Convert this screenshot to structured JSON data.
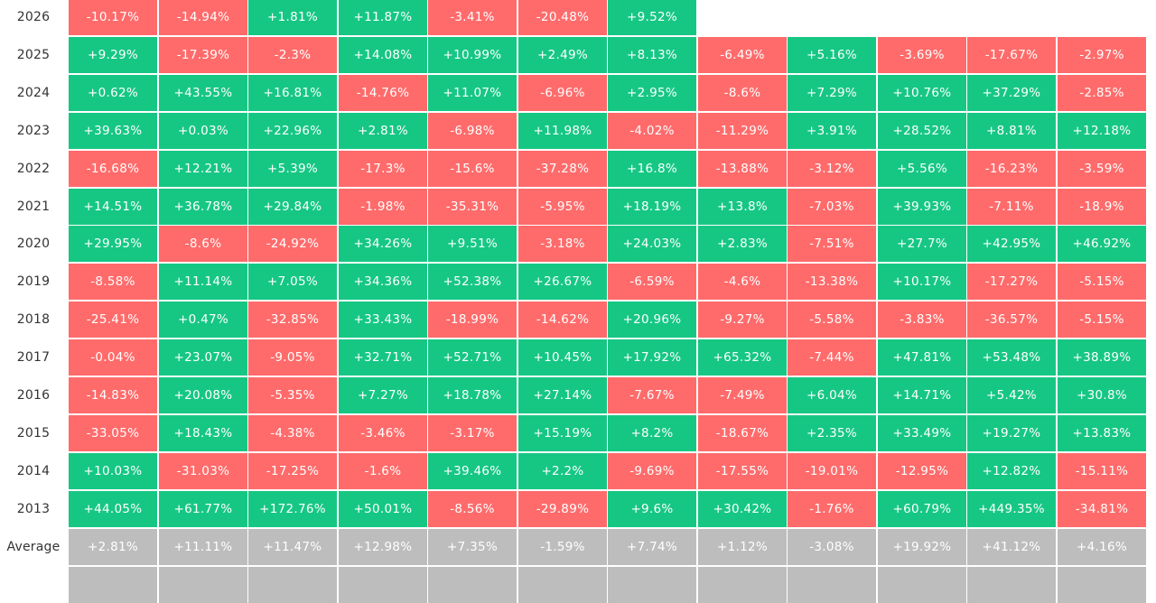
{
  "colors": {
    "positive": "#16c784",
    "negative": "#ff6b6b",
    "average": "#bdbdbd",
    "label_text": "#333333"
  },
  "chart_data": {
    "type": "table",
    "rows": [
      {
        "label": "2026",
        "values": [
          "-10.17%",
          "-14.94%",
          "+1.81%",
          "+11.87%",
          "-3.41%",
          "-20.48%",
          "+9.52%"
        ]
      },
      {
        "label": "2025",
        "values": [
          "+9.29%",
          "-17.39%",
          "-2.3%",
          "+14.08%",
          "+10.99%",
          "+2.49%",
          "+8.13%",
          "-6.49%",
          "+5.16%",
          "-3.69%",
          "-17.67%",
          "-2.97%"
        ]
      },
      {
        "label": "2024",
        "values": [
          "+0.62%",
          "+43.55%",
          "+16.81%",
          "-14.76%",
          "+11.07%",
          "-6.96%",
          "+2.95%",
          "-8.6%",
          "+7.29%",
          "+10.76%",
          "+37.29%",
          "-2.85%"
        ]
      },
      {
        "label": "2023",
        "values": [
          "+39.63%",
          "+0.03%",
          "+22.96%",
          "+2.81%",
          "-6.98%",
          "+11.98%",
          "-4.02%",
          "-11.29%",
          "+3.91%",
          "+28.52%",
          "+8.81%",
          "+12.18%"
        ]
      },
      {
        "label": "2022",
        "values": [
          "-16.68%",
          "+12.21%",
          "+5.39%",
          "-17.3%",
          "-15.6%",
          "-37.28%",
          "+16.8%",
          "-13.88%",
          "-3.12%",
          "+5.56%",
          "-16.23%",
          "-3.59%"
        ]
      },
      {
        "label": "2021",
        "values": [
          "+14.51%",
          "+36.78%",
          "+29.84%",
          "-1.98%",
          "-35.31%",
          "-5.95%",
          "+18.19%",
          "+13.8%",
          "-7.03%",
          "+39.93%",
          "-7.11%",
          "-18.9%"
        ]
      },
      {
        "label": "2020",
        "values": [
          "+29.95%",
          "-8.6%",
          "-24.92%",
          "+34.26%",
          "+9.51%",
          "-3.18%",
          "+24.03%",
          "+2.83%",
          "-7.51%",
          "+27.7%",
          "+42.95%",
          "+46.92%"
        ]
      },
      {
        "label": "2019",
        "values": [
          "-8.58%",
          "+11.14%",
          "+7.05%",
          "+34.36%",
          "+52.38%",
          "+26.67%",
          "-6.59%",
          "-4.6%",
          "-13.38%",
          "+10.17%",
          "-17.27%",
          "-5.15%"
        ]
      },
      {
        "label": "2018",
        "values": [
          "-25.41%",
          "+0.47%",
          "-32.85%",
          "+33.43%",
          "-18.99%",
          "-14.62%",
          "+20.96%",
          "-9.27%",
          "-5.58%",
          "-3.83%",
          "-36.57%",
          "-5.15%"
        ]
      },
      {
        "label": "2017",
        "values": [
          "-0.04%",
          "+23.07%",
          "-9.05%",
          "+32.71%",
          "+52.71%",
          "+10.45%",
          "+17.92%",
          "+65.32%",
          "-7.44%",
          "+47.81%",
          "+53.48%",
          "+38.89%"
        ]
      },
      {
        "label": "2016",
        "values": [
          "-14.83%",
          "+20.08%",
          "-5.35%",
          "+7.27%",
          "+18.78%",
          "+27.14%",
          "-7.67%",
          "-7.49%",
          "+6.04%",
          "+14.71%",
          "+5.42%",
          "+30.8%"
        ]
      },
      {
        "label": "2015",
        "values": [
          "-33.05%",
          "+18.43%",
          "-4.38%",
          "-3.46%",
          "-3.17%",
          "+15.19%",
          "+8.2%",
          "-18.67%",
          "+2.35%",
          "+33.49%",
          "+19.27%",
          "+13.83%"
        ]
      },
      {
        "label": "2014",
        "values": [
          "+10.03%",
          "-31.03%",
          "-17.25%",
          "-1.6%",
          "+39.46%",
          "+2.2%",
          "-9.69%",
          "-17.55%",
          "-19.01%",
          "-12.95%",
          "+12.82%",
          "-15.11%"
        ]
      },
      {
        "label": "2013",
        "values": [
          "+44.05%",
          "+61.77%",
          "+172.76%",
          "+50.01%",
          "-8.56%",
          "-29.89%",
          "+9.6%",
          "+30.42%",
          "-1.76%",
          "+60.79%",
          "+449.35%",
          "-34.81%"
        ]
      }
    ],
    "summary_rows": [
      {
        "label": "Average",
        "values": [
          "+2.81%",
          "+11.11%",
          "+11.47%",
          "+12.98%",
          "+7.35%",
          "-1.59%",
          "+7.74%",
          "+1.12%",
          "-3.08%",
          "+19.92%",
          "+41.12%",
          "+4.16%"
        ]
      },
      {
        "label": "",
        "values": [
          "",
          "",
          "",
          "",
          "",
          "",
          "",
          "",
          "",
          "",
          "",
          ""
        ]
      }
    ]
  }
}
